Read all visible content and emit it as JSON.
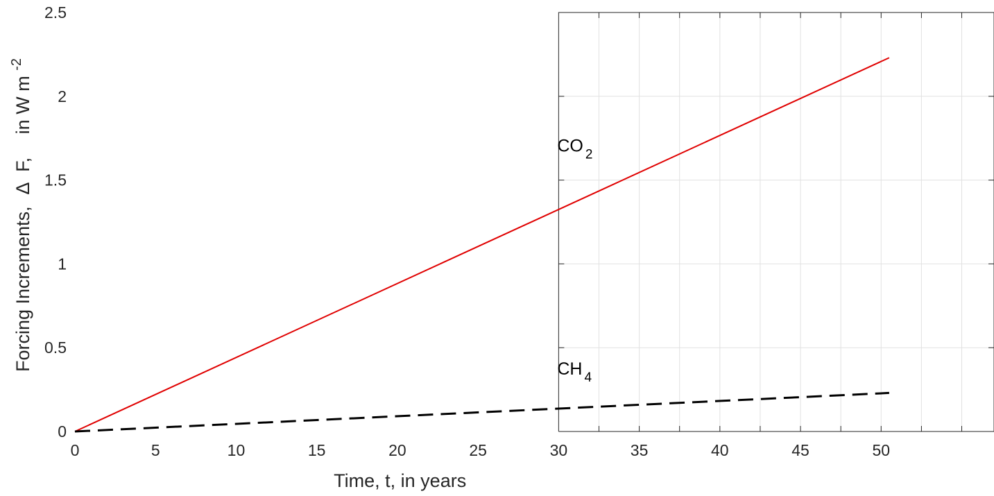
{
  "chart_data": {
    "type": "line",
    "xlabel": "Time, t, in years",
    "ylabel_parts": {
      "main": "Forcing Increments,",
      "delta": "∆",
      "symbol": "F,",
      "unit": "in W m",
      "exponent": "-2"
    },
    "xlim": [
      0,
      57
    ],
    "ylim": [
      0,
      2.5
    ],
    "xticks": [
      0,
      5,
      10,
      15,
      20,
      25,
      30,
      35,
      40,
      45,
      50
    ],
    "yticks": [
      0,
      0.5,
      1,
      1.5,
      2,
      2.5
    ],
    "ytick_labels": [
      "0",
      "0.5",
      "1",
      "1.5",
      "2",
      "2.5"
    ],
    "grid": true,
    "grid_region_x": [
      30,
      57
    ],
    "series": [
      {
        "name": "CO2",
        "color": "#e00000",
        "style": "solid",
        "x": [
          0,
          50.5
        ],
        "y": [
          0,
          2.23
        ]
      },
      {
        "name": "CH4",
        "color": "#000000",
        "style": "dashed",
        "x": [
          0,
          50.5
        ],
        "y": [
          0,
          0.23
        ]
      }
    ],
    "annotations": [
      {
        "main": "CO",
        "sub": "2",
        "x": 30,
        "y": 1.67
      },
      {
        "main": "CH",
        "sub": "4",
        "x": 30,
        "y": 0.34
      }
    ]
  }
}
